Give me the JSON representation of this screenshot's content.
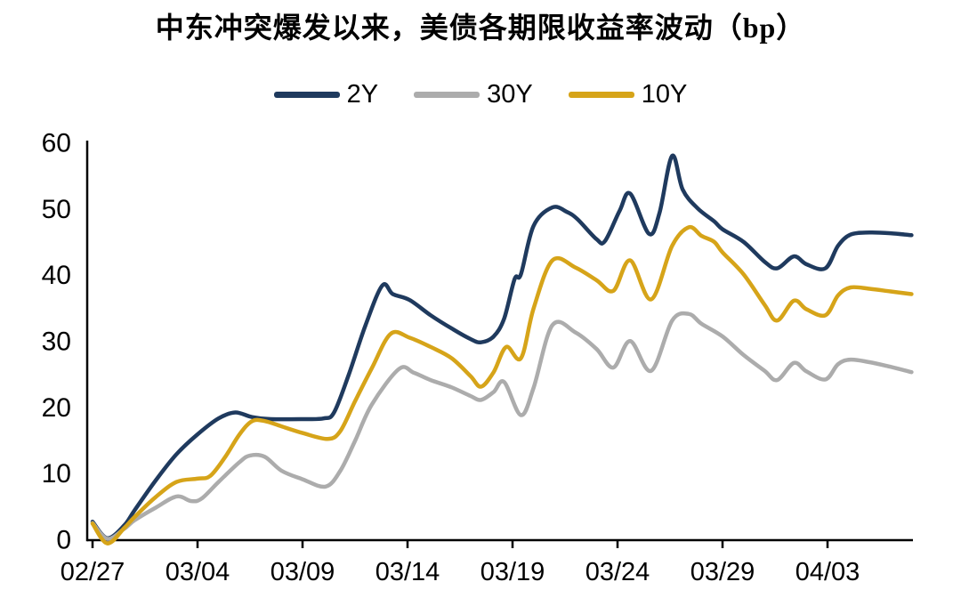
{
  "title": {
    "text": "中东冲突爆发以来，美债各期限收益率波动（bp）"
  },
  "chart_data": {
    "type": "line",
    "title": "中东冲突爆发以来，美债各期限收益率波动（bp）",
    "unit": "bp",
    "grid": "off",
    "legend_position": "top-center",
    "background": "#ffffff",
    "axis_color": "#000000",
    "x_axis": {
      "kind": "date",
      "tick_labels": [
        "02/27",
        "03/04",
        "03/09",
        "03/14",
        "03/19",
        "03/24",
        "03/29",
        "04/03"
      ],
      "tick_days": [
        0,
        5,
        10,
        15,
        20,
        25,
        30,
        35
      ],
      "range_days": [
        0,
        39
      ]
    },
    "y_axis": {
      "min": 0,
      "max": 60,
      "tick_step": 10,
      "tick_labels": [
        "0",
        "10",
        "20",
        "30",
        "40",
        "50",
        "60"
      ]
    },
    "series": [
      {
        "name": "2Y",
        "color": "#1F3A5E",
        "points": [
          [
            0,
            2.8
          ],
          [
            0.7,
            0.3
          ],
          [
            1.5,
            2.2
          ],
          [
            2,
            4.5
          ],
          [
            3,
            9
          ],
          [
            4,
            13
          ],
          [
            5,
            16
          ],
          [
            6,
            18.4
          ],
          [
            6.8,
            19.3
          ],
          [
            7.6,
            18.6
          ],
          [
            8.5,
            18.3
          ],
          [
            10,
            18.3
          ],
          [
            11,
            18.4
          ],
          [
            11.5,
            19.3
          ],
          [
            12.2,
            25
          ],
          [
            13,
            32.5
          ],
          [
            13.8,
            38.5
          ],
          [
            14.3,
            37.2
          ],
          [
            15.1,
            36.3
          ],
          [
            16.1,
            34
          ],
          [
            17.1,
            32
          ],
          [
            18,
            30.4
          ],
          [
            18.5,
            29.9
          ],
          [
            19.1,
            30.8
          ],
          [
            19.6,
            33.5
          ],
          [
            20.1,
            39.5
          ],
          [
            20.4,
            40.2
          ],
          [
            21,
            47.5
          ],
          [
            21.9,
            50.3
          ],
          [
            22.6,
            49.6
          ],
          [
            23.1,
            48.5
          ],
          [
            24,
            45.5
          ],
          [
            24.4,
            45.2
          ],
          [
            25.1,
            49.8
          ],
          [
            25.6,
            52.4
          ],
          [
            26.5,
            46.3
          ],
          [
            27,
            49.5
          ],
          [
            27.6,
            58.1
          ],
          [
            28.1,
            53
          ],
          [
            28.8,
            50.2
          ],
          [
            29.6,
            48.2
          ],
          [
            30,
            47
          ],
          [
            31,
            45.1
          ],
          [
            32,
            42.1
          ],
          [
            32.6,
            41.1
          ],
          [
            33.4,
            42.9
          ],
          [
            34,
            41.7
          ],
          [
            34.9,
            41.1
          ],
          [
            35.5,
            44.5
          ],
          [
            36.1,
            46.2
          ],
          [
            37,
            46.5
          ],
          [
            38,
            46.4
          ],
          [
            39,
            46.1
          ]
        ]
      },
      {
        "name": "30Y",
        "color": "#ACACAC",
        "points": [
          [
            0,
            2.6
          ],
          [
            0.7,
            0.2
          ],
          [
            1.5,
            1.7
          ],
          [
            2,
            3
          ],
          [
            3,
            4.9
          ],
          [
            4,
            6.6
          ],
          [
            4.7,
            5.9
          ],
          [
            5.2,
            6.3
          ],
          [
            6,
            8.8
          ],
          [
            7,
            11.8
          ],
          [
            7.5,
            12.8
          ],
          [
            8.2,
            12.6
          ],
          [
            9,
            10.5
          ],
          [
            10,
            9.2
          ],
          [
            11.1,
            8.1
          ],
          [
            11.8,
            10.5
          ],
          [
            12.5,
            15
          ],
          [
            13.3,
            20.5
          ],
          [
            14.6,
            25.9
          ],
          [
            15.3,
            25.3
          ],
          [
            16.1,
            24.2
          ],
          [
            17.1,
            23.1
          ],
          [
            18,
            21.8
          ],
          [
            18.5,
            21.2
          ],
          [
            19.1,
            22.4
          ],
          [
            19.6,
            23.9
          ],
          [
            20.4,
            18.9
          ],
          [
            21,
            23
          ],
          [
            21.9,
            32.5
          ],
          [
            23,
            31.4
          ],
          [
            24,
            28.9
          ],
          [
            24.8,
            26.1
          ],
          [
            25.6,
            30.1
          ],
          [
            26.6,
            25.6
          ],
          [
            27.6,
            33.2
          ],
          [
            28.4,
            34.2
          ],
          [
            29,
            32.7
          ],
          [
            30,
            30.8
          ],
          [
            31,
            28
          ],
          [
            32,
            25.6
          ],
          [
            32.6,
            24.2
          ],
          [
            33.4,
            26.8
          ],
          [
            34,
            25.5
          ],
          [
            34.9,
            24.3
          ],
          [
            35.5,
            26.6
          ],
          [
            36.1,
            27.3
          ],
          [
            37,
            26.9
          ],
          [
            38,
            26.2
          ],
          [
            39,
            25.4
          ]
        ]
      },
      {
        "name": "10Y",
        "color": "#D6A419",
        "points": [
          [
            0,
            2.5
          ],
          [
            0.7,
            -0.5
          ],
          [
            1.5,
            1.8
          ],
          [
            2,
            3.5
          ],
          [
            3,
            6.5
          ],
          [
            4,
            8.8
          ],
          [
            5,
            9.3
          ],
          [
            5.6,
            9.7
          ],
          [
            6.3,
            12.5
          ],
          [
            7,
            16
          ],
          [
            7.6,
            18
          ],
          [
            8.2,
            18
          ],
          [
            9,
            17.2
          ],
          [
            10,
            16.2
          ],
          [
            11.2,
            15.3
          ],
          [
            11.8,
            16.5
          ],
          [
            12.5,
            21
          ],
          [
            13.3,
            26
          ],
          [
            14.2,
            31.2
          ],
          [
            15.1,
            30.6
          ],
          [
            16.1,
            29.2
          ],
          [
            17.1,
            27.5
          ],
          [
            18,
            24.8
          ],
          [
            18.5,
            23.2
          ],
          [
            19.1,
            25.4
          ],
          [
            19.7,
            29.2
          ],
          [
            20.4,
            27.5
          ],
          [
            21,
            35
          ],
          [
            21.9,
            42.3
          ],
          [
            23,
            41.2
          ],
          [
            24,
            39.3
          ],
          [
            24.8,
            37.7
          ],
          [
            25.6,
            42.3
          ],
          [
            26.6,
            36.4
          ],
          [
            27.6,
            44.5
          ],
          [
            28.4,
            47.3
          ],
          [
            29,
            46
          ],
          [
            29.6,
            45.1
          ],
          [
            30,
            43.5
          ],
          [
            31,
            40.2
          ],
          [
            32,
            35.6
          ],
          [
            32.6,
            33.2
          ],
          [
            33.4,
            36.2
          ],
          [
            34,
            34.9
          ],
          [
            34.9,
            34
          ],
          [
            35.5,
            37
          ],
          [
            36.1,
            38.2
          ],
          [
            37,
            38
          ],
          [
            38,
            37.6
          ],
          [
            39,
            37.2
          ]
        ]
      }
    ]
  }
}
